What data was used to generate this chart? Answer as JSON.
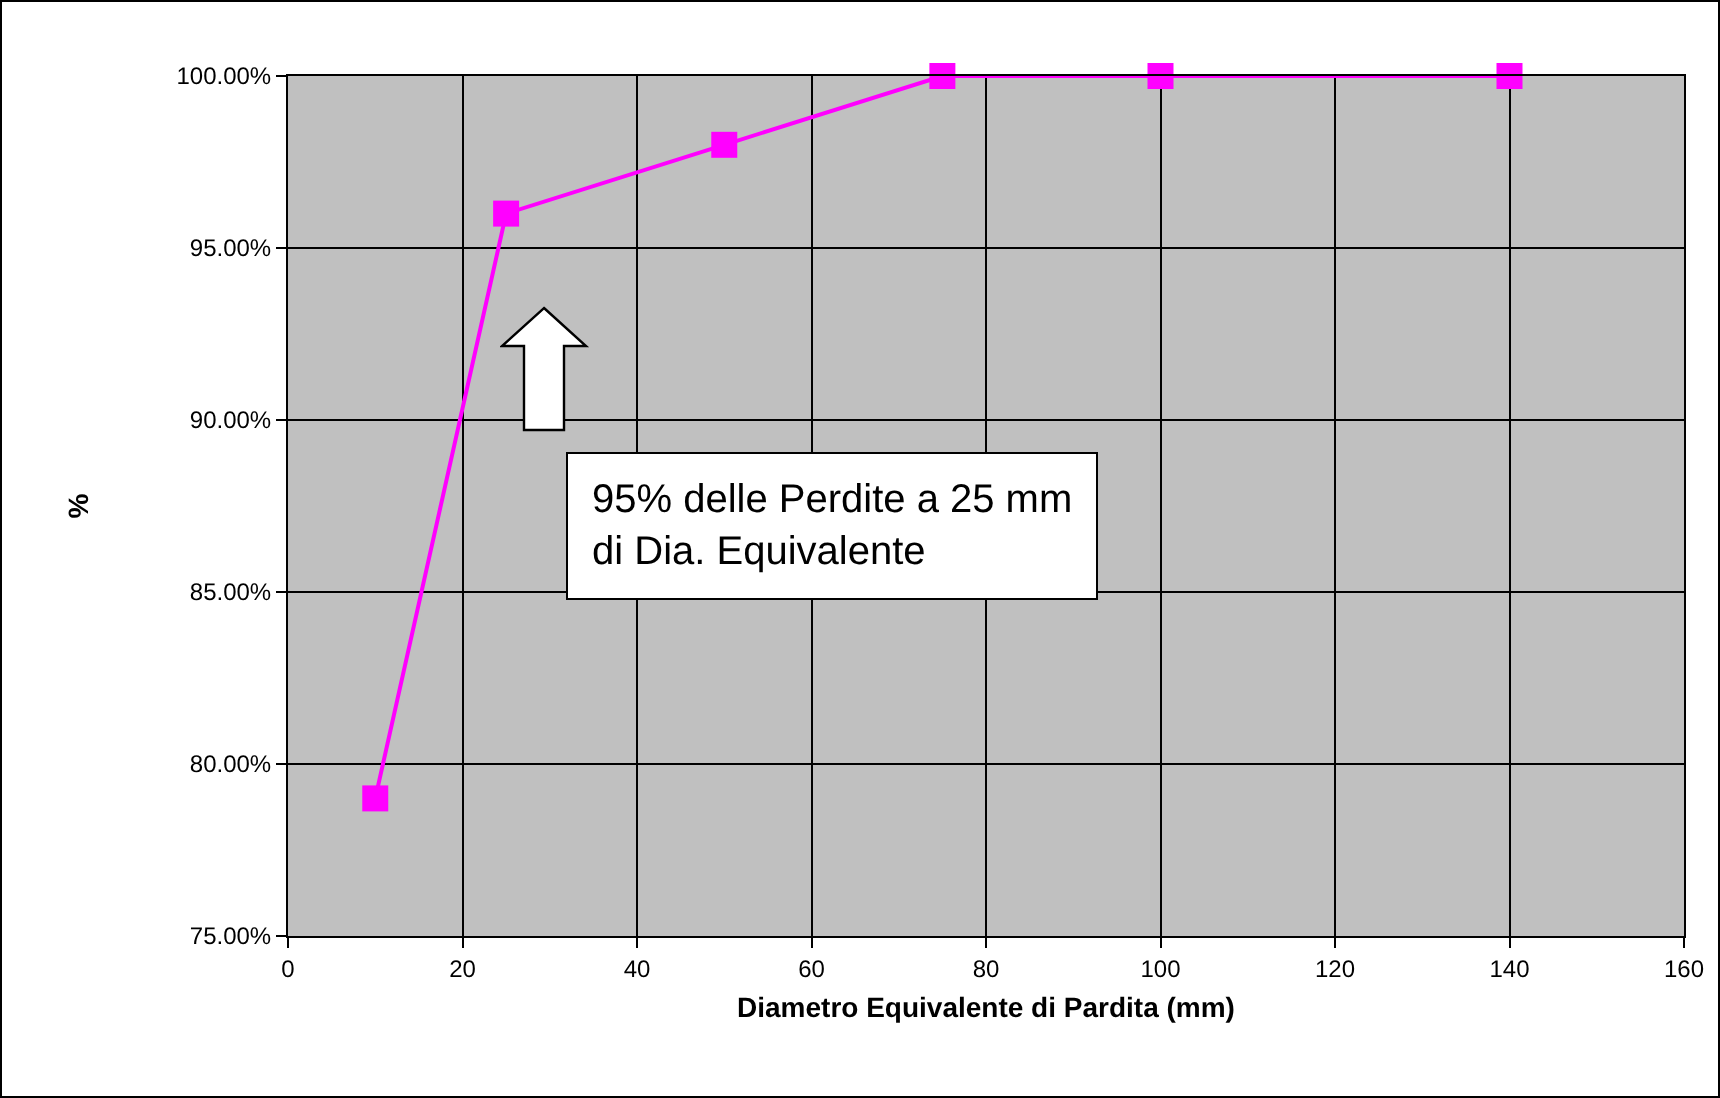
{
  "chart_data": {
    "type": "line",
    "xlabel": "Diametro Equivalente di Pardita (mm)",
    "ylabel": "%",
    "x": [
      10,
      25,
      50,
      75,
      100,
      140
    ],
    "series": [
      {
        "color": "#ff00ff",
        "values": [
          79,
          96,
          98,
          100,
          100,
          100
        ]
      }
    ],
    "xlim": [
      0,
      160
    ],
    "xticks": [
      0,
      20,
      40,
      60,
      80,
      100,
      120,
      140,
      160
    ],
    "ylim": [
      75,
      100
    ],
    "yticks": [
      {
        "value": 75,
        "label": "75.00%"
      },
      {
        "value": 80,
        "label": "80.00%"
      },
      {
        "value": 85,
        "label": "85.00%"
      },
      {
        "value": 90,
        "label": "90.00%"
      },
      {
        "value": 95,
        "label": "95.00%"
      },
      {
        "value": 100,
        "label": "100.00%"
      }
    ],
    "annotations": [
      "95% delle Perdite a 25 mm\ndi Dia. Equivalente"
    ],
    "grid": true,
    "marker": "square",
    "line_style": "solid"
  }
}
